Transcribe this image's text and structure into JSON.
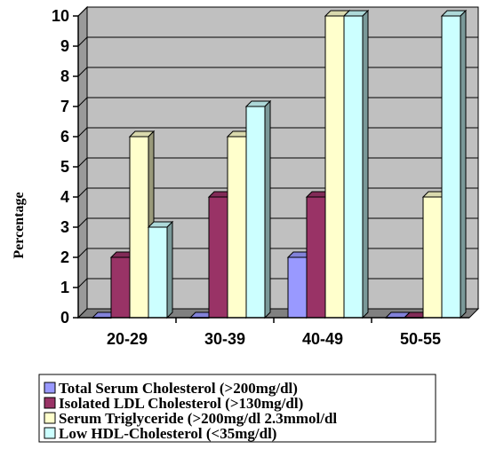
{
  "chart_data": {
    "type": "bar",
    "ylabel": "Percentage",
    "ylim": [
      0,
      10
    ],
    "yticks": [
      "0",
      "1",
      "2",
      "3",
      "4",
      "5",
      "6",
      "7",
      "8",
      "9",
      "10"
    ],
    "categories": [
      "20-29",
      "30-39",
      "40-49",
      "50-55"
    ],
    "grid": true,
    "legend_position": "bottom",
    "series": [
      {
        "name": "Total Serum Cholesterol (>200mg/dl)",
        "values": [
          0,
          0,
          2,
          0
        ],
        "color": "#9999FF"
      },
      {
        "name": "Isolated LDL Cholesterol (>130mg/dl)",
        "values": [
          2,
          4,
          4,
          0
        ],
        "color": "#993366"
      },
      {
        "name": "Serum Triglyceride (>200mg/dl 2.3mmol/dl",
        "values": [
          6,
          6,
          10,
          4
        ],
        "color": "#FFFFCC"
      },
      {
        "name": "Low HDL-Cholesterol (<35mg/dl)",
        "values": [
          3,
          7,
          10,
          10
        ],
        "color": "#CCFFFF"
      }
    ],
    "plot_background": "#C0C0C0"
  }
}
